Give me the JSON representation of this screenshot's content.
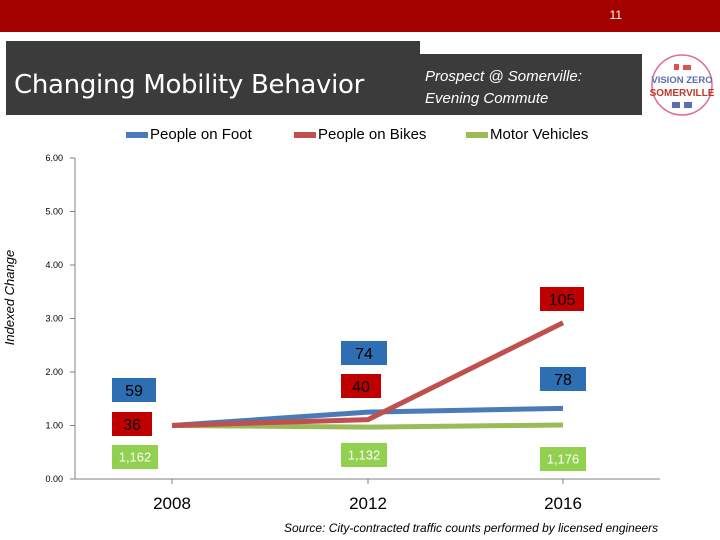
{
  "slide": {
    "number": "11"
  },
  "header": {
    "title": "Changing Mobility Behavior",
    "subtitle_line1": "Prospect @ Somerville:",
    "subtitle_line2": "Evening Commute",
    "logo_line1": "VISION ZERO",
    "logo_line2": "SOMERVILLE"
  },
  "source": "Source: City-contracted traffic counts performed by licensed engineers",
  "chart_data": {
    "type": "line",
    "ylabel": "Indexed Change",
    "xlabel": "",
    "categories": [
      "2008",
      "2012",
      "2016"
    ],
    "ylim": [
      0,
      6
    ],
    "yticks": [
      "0.00",
      "1.00",
      "2.00",
      "3.00",
      "4.00",
      "5.00",
      "6.00"
    ],
    "legend_position": "top",
    "series": [
      {
        "name": "People on Foot",
        "color": "#4a7ab8",
        "values": [
          1.0,
          1.25,
          1.32
        ],
        "labels": [
          "59",
          "74",
          "78"
        ],
        "label_bg": "#2e6fb3",
        "label_fg": "#000000"
      },
      {
        "name": "People on Bikes",
        "color": "#c0504d",
        "values": [
          1.0,
          1.11,
          2.92
        ],
        "labels": [
          "36",
          "40",
          "105"
        ],
        "label_bg": "#c00000",
        "label_fg": "#000000"
      },
      {
        "name": "Motor Vehicles",
        "color": "#9bbb59",
        "values": [
          1.0,
          0.97,
          1.01
        ],
        "labels": [
          "1,162",
          "1,132",
          "1,176"
        ],
        "label_bg": "#92d050",
        "label_fg": "#ffffff"
      }
    ]
  }
}
